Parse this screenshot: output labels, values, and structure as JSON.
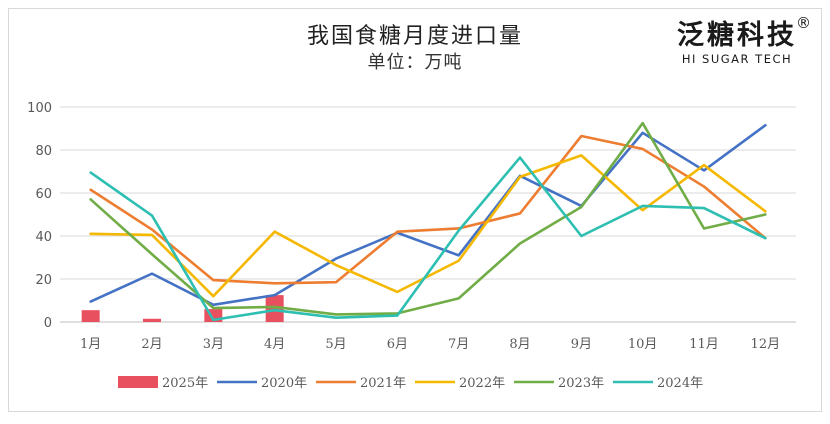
{
  "chart_data": {
    "type": "line",
    "title": "我国食糖月度进口量",
    "subtitle": "单位：万吨",
    "categories": [
      "1月",
      "2月",
      "3月",
      "4月",
      "5月",
      "6月",
      "7月",
      "8月",
      "9月",
      "10月",
      "11月",
      "12月"
    ],
    "ylim": [
      0,
      100
    ],
    "yticks": [
      0,
      20,
      40,
      60,
      80,
      100
    ],
    "grid": true,
    "legend_position": "bottom",
    "bar_series": {
      "name": "2025年",
      "color": "#e8505f",
      "values": [
        5.5,
        1.5,
        6.0,
        12.5
      ]
    },
    "series": [
      {
        "name": "2020年",
        "color": "#4472c4",
        "values": [
          9.5,
          22.5,
          8.0,
          12.5,
          29.5,
          41.5,
          31.0,
          68.0,
          54.0,
          88.0,
          70.5,
          91.5
        ]
      },
      {
        "name": "2021年",
        "color": "#ed7d31",
        "values": [
          61.5,
          43.0,
          19.5,
          18.0,
          18.5,
          42.0,
          43.5,
          50.5,
          86.5,
          80.5,
          63.0,
          39.0
        ]
      },
      {
        "name": "2022年",
        "color": "#f5b800",
        "values": [
          41.0,
          40.5,
          12.0,
          42.0,
          26.5,
          14.0,
          28.5,
          67.5,
          77.5,
          52.0,
          73.0,
          51.5
        ]
      },
      {
        "name": "2023年",
        "color": "#70ad47",
        "values": [
          57.0,
          31.5,
          6.5,
          7.0,
          3.5,
          4.0,
          11.0,
          36.5,
          53.5,
          92.5,
          43.5,
          50.0
        ]
      },
      {
        "name": "2024年",
        "color": "#2ebfb2",
        "values": [
          69.5,
          49.5,
          1.0,
          5.5,
          2.0,
          3.0,
          42.5,
          76.5,
          40.0,
          54.0,
          53.0,
          39.0
        ]
      }
    ]
  },
  "logo": {
    "main": "泛糖科技",
    "sub": "HI SUGAR TECH",
    "reg": "®"
  }
}
